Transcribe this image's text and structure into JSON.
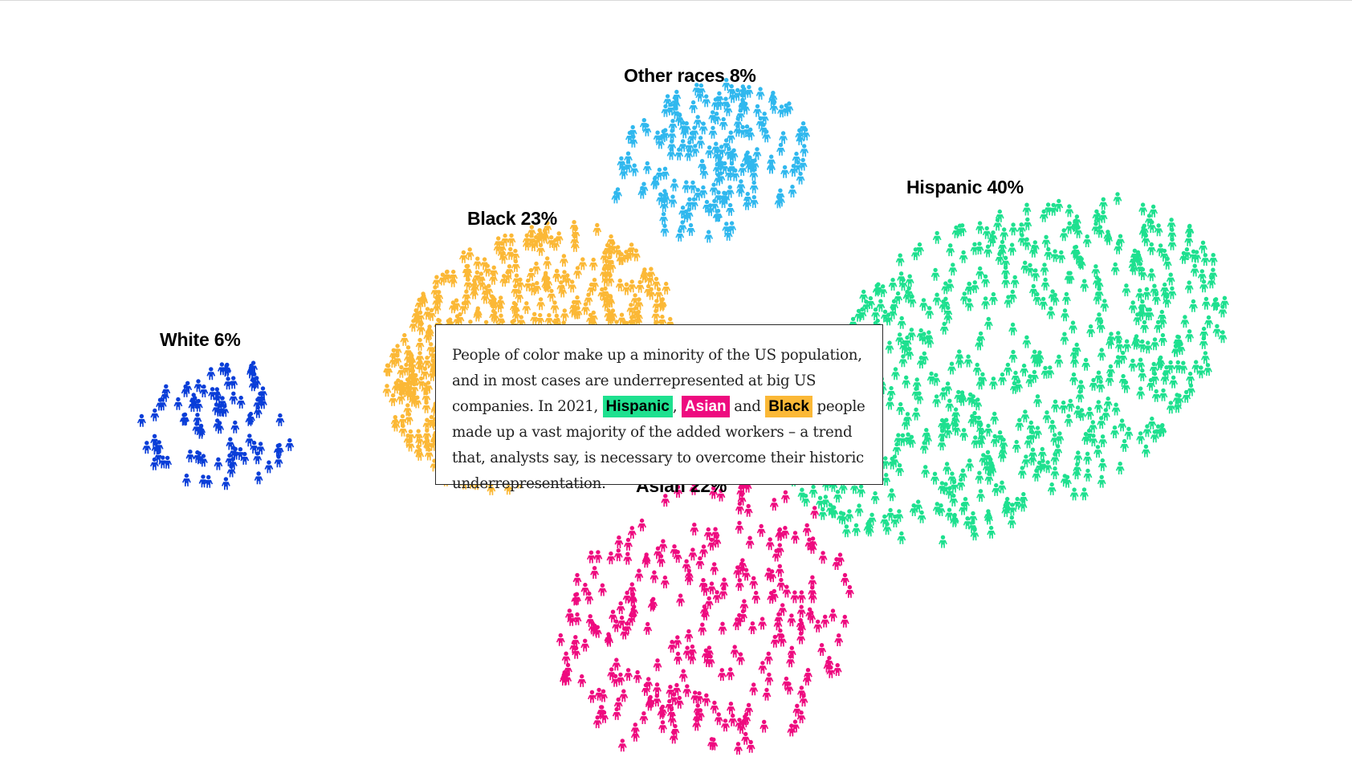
{
  "chart_data": {
    "type": "scatter",
    "title": "",
    "groups": [
      {
        "name": "White",
        "label": "White 6%",
        "percent": 6,
        "color": "#0a3ed8"
      },
      {
        "name": "Black",
        "label": "Black 23%",
        "percent": 23,
        "color": "#fbb836"
      },
      {
        "name": "Other races",
        "label": "Other races 8%",
        "percent": 8,
        "color": "#30b8ee"
      },
      {
        "name": "Hispanic",
        "label": "Hispanic 40%",
        "percent": 40,
        "color": "#1ee08f"
      },
      {
        "name": "Asian",
        "label": "Asian 22%",
        "percent": 22,
        "color": "#ee0b7f"
      }
    ]
  },
  "story": {
    "part1": "People of color make up a minority of the US population, and in most cases are underrepresented at big US companies. In 2021,",
    "hispanic": "Hispanic",
    "sep1": ",",
    "asian": "Asian",
    "sep2": "and",
    "black": "Black",
    "part2": "people made up a vast majority of the added workers – a trend that, analysts say, is necessary to overcome their historic underrepresentation."
  }
}
